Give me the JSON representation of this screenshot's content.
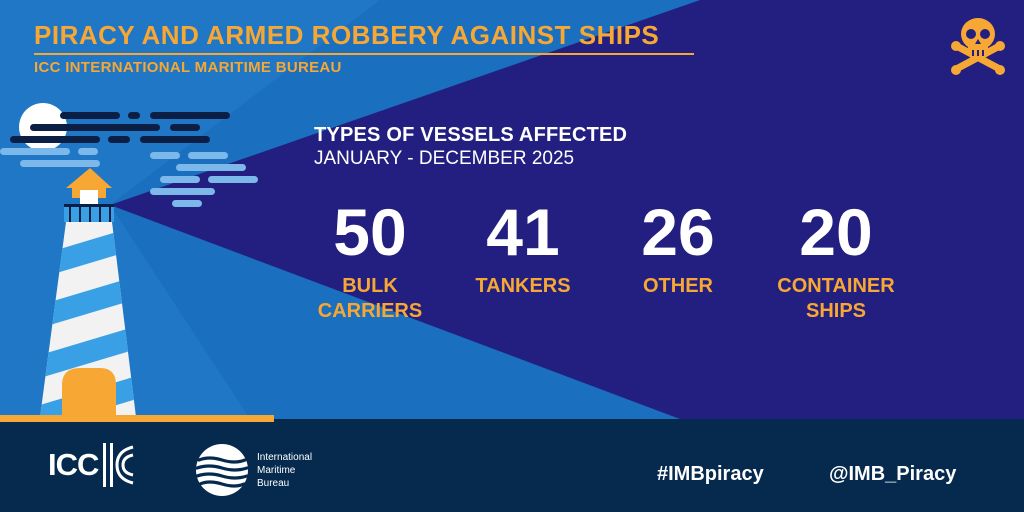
{
  "header": {
    "title": "PIRACY AND ARMED ROBBERY AGAINST SHIPS",
    "subtitle": "ICC INTERNATIONAL MARITIME BUREAU"
  },
  "infographic": {
    "heading": "TYPES OF VESSELS AFFECTED",
    "period": "JANUARY - DECEMBER 2025",
    "stats": [
      {
        "value": "50",
        "label": "BULK\nCARRIERS"
      },
      {
        "value": "41",
        "label": "TANKERS"
      },
      {
        "value": "26",
        "label": "OTHER"
      },
      {
        "value": "20",
        "label": "CONTAINER\nSHIPS"
      }
    ]
  },
  "footer": {
    "icc_logo_text": "ICC",
    "imb_logo_text": "International\nMaritime\nBureau",
    "hashtag": "#IMBpiracy",
    "handle": "@IMB_Piracy"
  },
  "colors": {
    "background": "#231f80",
    "light_beam": "#1b6fbf",
    "accent": "#f7a734",
    "footer": "#062a4e",
    "text": "#ffffff"
  },
  "icons": [
    "skull-crossbones-icon",
    "lighthouse-illustration",
    "moon-icon",
    "cloud-icon"
  ]
}
